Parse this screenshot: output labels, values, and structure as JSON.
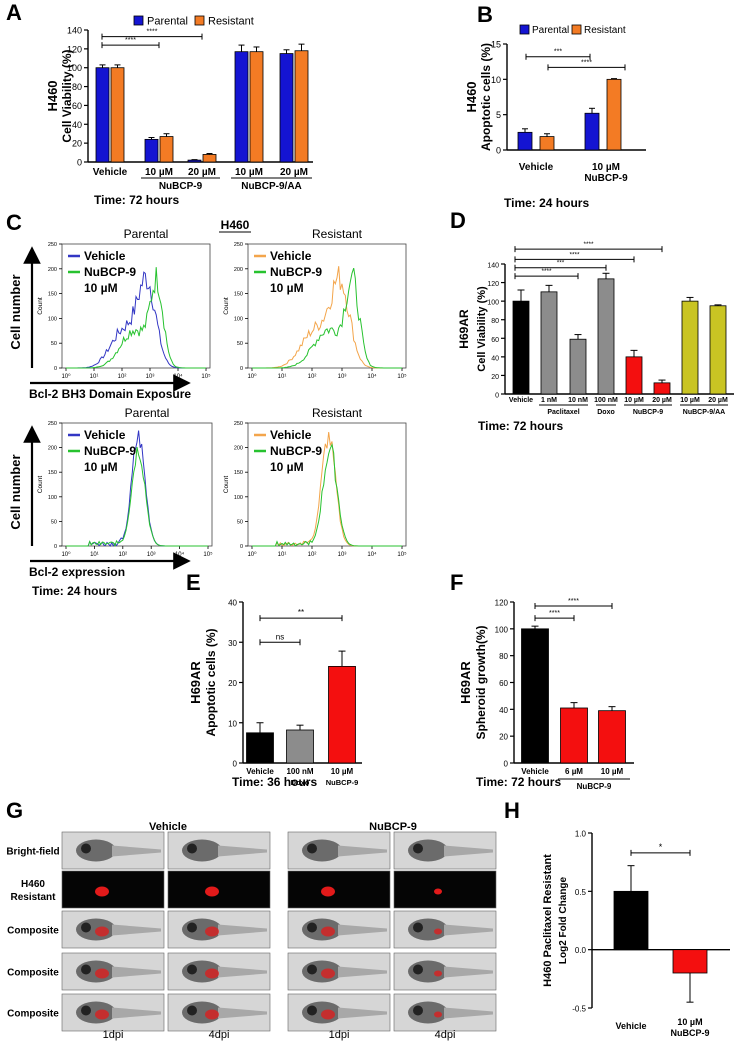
{
  "figure": {
    "panel_letters": {
      "A": "A",
      "B": "B",
      "C": "C",
      "D": "D",
      "E": "E",
      "F": "F",
      "G": "G",
      "H": "H"
    },
    "notes": {
      "A": "Time: 72 hours",
      "B": "Time: 24 hours",
      "C": "Time: 24 hours",
      "D": "Time: 72 hours",
      "E": "Time: 36 hours",
      "F": "Time: 72 hours"
    }
  },
  "colors": {
    "parental": "#1414d2",
    "resistant": "#f37b24",
    "black": "#000000",
    "grey": "#8c8c8c",
    "red": "#f40f0f",
    "olive": "#c9c423",
    "vehicle_line": "#3236c4",
    "nubcp_line": "#27c22f",
    "vehicle_orange": "#f3a54b"
  },
  "chart_data": [
    {
      "id": "A",
      "type": "bar",
      "ylabel_line1": "H460",
      "ylabel_line2": "Cell Viability (%)",
      "ylim": [
        0,
        140
      ],
      "yticks": [
        0,
        20,
        40,
        60,
        80,
        100,
        120,
        140
      ],
      "legend": [
        "Parental",
        "Resistant"
      ],
      "categories": [
        "Vehicle",
        "10 µM",
        "20 µM",
        "10 µM",
        "20 µM"
      ],
      "groups": [
        {
          "label": "NuBCP-9",
          "from": 1,
          "to": 2
        },
        {
          "label": "NuBCP-9/AA",
          "from": 3,
          "to": 4
        }
      ],
      "series": [
        {
          "name": "Parental",
          "values": [
            100,
            24,
            2,
            117,
            115
          ],
          "errors": [
            3,
            2,
            0.5,
            7,
            4
          ]
        },
        {
          "name": "Resistant",
          "values": [
            100,
            27,
            8,
            117,
            118
          ],
          "errors": [
            3,
            3,
            1,
            5,
            7
          ]
        }
      ],
      "sig": [
        {
          "from": 0,
          "to": 1,
          "text": "****",
          "y": 124
        },
        {
          "from": 0,
          "to": 2,
          "text": "****",
          "y": 133
        }
      ]
    },
    {
      "id": "B",
      "type": "bar",
      "ylabel_line1": "H460",
      "ylabel_line2": "Apoptotic cells (%)",
      "ylim": [
        0,
        15
      ],
      "yticks": [
        0,
        5,
        10,
        15
      ],
      "legend": [
        "Parental",
        "Resistant"
      ],
      "categories": [
        "Vehicle",
        "10 µM"
      ],
      "sublabel": "NuBCP-9",
      "series": [
        {
          "name": "Parental",
          "values": [
            2.5,
            5.2
          ],
          "errors": [
            0.5,
            0.7
          ]
        },
        {
          "name": "Resistant",
          "values": [
            1.9,
            10.0
          ],
          "errors": [
            0.4,
            0.1
          ]
        }
      ],
      "sig": [
        {
          "text": "***",
          "y": 13.2
        },
        {
          "text": "****",
          "y": 11.7
        }
      ]
    },
    {
      "id": "C",
      "type": "histogram",
      "title": "H460",
      "panels": [
        {
          "title": "Parental",
          "xlabel": "Bcl-2 BH3 Domain Exposure",
          "ymax": 250,
          "legend": [
            "Vehicle",
            "NuBCP-9",
            "10 µM"
          ],
          "series": [
            {
              "name": "Vehicle",
              "peak": 2.9
            },
            {
              "name": "NuBCP-9",
              "peak": 3.25
            }
          ]
        },
        {
          "title": "Resistant",
          "xlabel": "",
          "ymax": 250,
          "legend": [
            "Vehicle",
            "NuBCP-9",
            "10 µM"
          ],
          "series": [
            {
              "name": "Vehicle",
              "peak": 2.95
            },
            {
              "name": "NuBCP-9",
              "peak": 3.35
            }
          ]
        },
        {
          "title": "Parental",
          "xlabel": "Bcl-2 expression",
          "ymax": 250,
          "legend": [
            "Vehicle",
            "NuBCP-9",
            "10 µM"
          ],
          "series": [
            {
              "name": "Vehicle",
              "peak": 2.55
            },
            {
              "name": "NuBCP-9",
              "peak": 2.55
            }
          ]
        },
        {
          "title": "Resistant",
          "xlabel": "",
          "ymax": 250,
          "legend": [
            "Vehicle",
            "NuBCP-9",
            "10 µM"
          ],
          "series": [
            {
              "name": "Vehicle",
              "peak": 2.55
            },
            {
              "name": "NuBCP-9",
              "peak": 2.6
            }
          ]
        }
      ],
      "ylabel": "Count",
      "yaxis_arrow_label": "Cell number",
      "xticks": [
        "10⁰",
        "10¹",
        "10²",
        "10³",
        "10⁴",
        "10⁵"
      ],
      "yticks": [
        0,
        50,
        100,
        150,
        200,
        250
      ]
    },
    {
      "id": "D",
      "type": "bar",
      "ylabel_line1": "H69AR",
      "ylabel_line2": "Cell Viability (%)",
      "ylim": [
        0,
        140
      ],
      "yticks": [
        0,
        20,
        40,
        60,
        80,
        100,
        120,
        140
      ],
      "categories": [
        "Vehicle",
        "1 nM",
        "10 nM",
        "100 nM",
        "10 µM",
        "20 µM",
        "10 µM",
        "20 µM"
      ],
      "colors": [
        "black",
        "grey",
        "grey",
        "grey",
        "red",
        "red",
        "olive",
        "olive"
      ],
      "values": [
        100,
        110,
        59,
        124,
        40,
        12,
        100,
        95
      ],
      "errors": [
        12,
        7,
        5,
        6,
        7,
        3,
        4,
        1
      ],
      "groups": [
        {
          "label": "Paclitaxel",
          "from": 1,
          "to": 2
        },
        {
          "label": "Doxo",
          "from": 3,
          "to": 3
        },
        {
          "label": "NuBCP-9",
          "from": 4,
          "to": 5
        },
        {
          "label": "NuBCP-9/AA",
          "from": 6,
          "to": 7
        }
      ],
      "sig": [
        {
          "from": 0,
          "to": 2,
          "text": "****",
          "y": 127
        },
        {
          "from": 0,
          "to": 3,
          "text": "***",
          "y": 136
        },
        {
          "from": 0,
          "to": 4,
          "text": "****",
          "y": 145
        },
        {
          "from": 0,
          "to": 5,
          "text": "****",
          "y": 156
        }
      ]
    },
    {
      "id": "E",
      "type": "bar",
      "ylabel_line1": "H69AR",
      "ylabel_line2": "Apoptotic cells (%)",
      "ylim": [
        0,
        40
      ],
      "yticks": [
        0,
        10,
        20,
        30,
        40
      ],
      "categories": [
        "Vehicle",
        "100 nM",
        "10 µM"
      ],
      "sublabels": [
        "",
        "Doxo",
        "NuBCP-9"
      ],
      "colors": [
        "black",
        "grey",
        "red"
      ],
      "values": [
        7.5,
        8.2,
        24
      ],
      "errors": [
        2.5,
        1.2,
        3.8
      ],
      "sig": [
        {
          "from": 0,
          "to": 1,
          "text": "ns",
          "y": 30
        },
        {
          "from": 0,
          "to": 2,
          "text": "**",
          "y": 36
        }
      ]
    },
    {
      "id": "F",
      "type": "bar",
      "ylabel_line1": "H69AR",
      "ylabel_line2": "Spheroid growth(%)",
      "ylim": [
        0,
        120
      ],
      "yticks": [
        0,
        20,
        40,
        60,
        80,
        100,
        120
      ],
      "categories": [
        "Vehicle",
        "6 µM",
        "10 µM"
      ],
      "sublabel": "NuBCP-9",
      "colors": [
        "black",
        "red",
        "red"
      ],
      "values": [
        100,
        41,
        39
      ],
      "errors": [
        2,
        4,
        3
      ],
      "sig": [
        {
          "from": 0,
          "to": 1,
          "text": "****",
          "y": 108
        },
        {
          "from": 0,
          "to": 2,
          "text": "****",
          "y": 117
        }
      ]
    },
    {
      "id": "G",
      "type": "image-grid",
      "col_titles": [
        "Vehicle",
        "NuBCP-9"
      ],
      "row_labels": [
        "Bright-field",
        "H460\nResistant",
        "Composite",
        "Composite",
        "Composite"
      ],
      "col_labels": [
        "1dpi",
        "4dpi",
        "1dpi",
        "4dpi"
      ]
    },
    {
      "id": "H",
      "type": "bar",
      "ylabel_line1": "H460 Paclitaxel Resistant",
      "ylabel_line2": "Log2 Fold Change",
      "ylim": [
        -0.5,
        1.0
      ],
      "yticks": [
        -0.5,
        0.0,
        0.5,
        1.0
      ],
      "ytick_labels": [
        "-0.5",
        "0.0",
        "0.5",
        "1.0"
      ],
      "categories": [
        "Vehicle",
        "10 µM"
      ],
      "sublabel": "NuBCP-9",
      "colors": [
        "black",
        "red"
      ],
      "values": [
        0.5,
        -0.2
      ],
      "errors": [
        0.22,
        0.25
      ],
      "sig": [
        {
          "from": 0,
          "to": 1,
          "text": "*",
          "y": 0.83
        }
      ]
    }
  ]
}
